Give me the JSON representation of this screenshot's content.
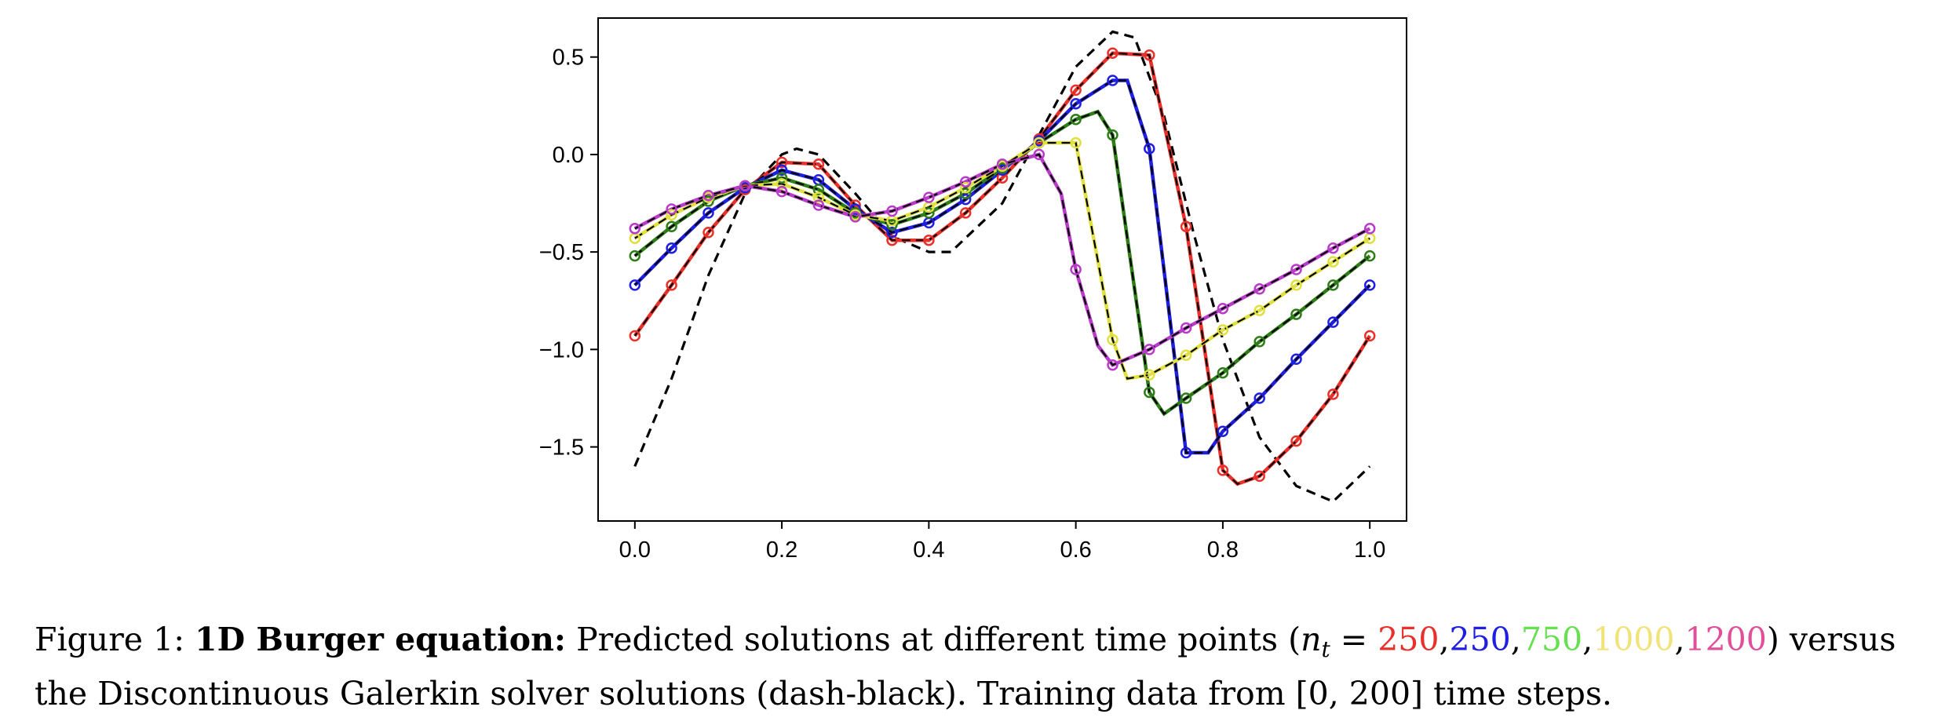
{
  "chart_data": {
    "type": "line",
    "xlim": [
      -0.05,
      1.05
    ],
    "ylim": [
      -1.88,
      0.7
    ],
    "x_ticks": [
      {
        "value": 0.0,
        "label": "0.0"
      },
      {
        "value": 0.2,
        "label": "0.2"
      },
      {
        "value": 0.4,
        "label": "0.4"
      },
      {
        "value": 0.6,
        "label": "0.6"
      },
      {
        "value": 0.8,
        "label": "0.8"
      },
      {
        "value": 1.0,
        "label": "1.0"
      }
    ],
    "y_ticks": [
      {
        "value": 0.5,
        "label": "0.5"
      },
      {
        "value": 0.0,
        "label": "0.0"
      },
      {
        "value": -0.5,
        "label": "−0.5"
      },
      {
        "value": -1.0,
        "label": "−1.0"
      },
      {
        "value": -1.5,
        "label": "−1.5"
      }
    ],
    "grid": false,
    "marker_x": [
      0.0,
      0.05,
      0.1,
      0.15,
      0.2,
      0.25,
      0.3,
      0.35,
      0.4,
      0.45,
      0.5,
      0.55,
      0.6,
      0.65,
      0.7,
      0.75,
      0.8,
      0.85,
      0.9,
      0.95,
      1.0
    ],
    "reference": {
      "color": "#000000",
      "x": [
        0.0,
        0.05,
        0.1,
        0.15,
        0.2,
        0.22,
        0.25,
        0.3,
        0.35,
        0.4,
        0.43,
        0.5,
        0.55,
        0.6,
        0.65,
        0.68,
        0.72,
        0.76,
        0.8,
        0.85,
        0.9,
        0.95,
        1.0
      ],
      "y": [
        -1.6,
        -1.15,
        -0.62,
        -0.2,
        0.0,
        0.03,
        0.0,
        -0.2,
        -0.42,
        -0.5,
        -0.5,
        -0.25,
        0.1,
        0.45,
        0.63,
        0.6,
        0.2,
        -0.4,
        -0.95,
        -1.45,
        -1.7,
        -1.78,
        -1.6
      ]
    },
    "series": [
      {
        "color": "#e8312a",
        "x": [
          0.0,
          0.05,
          0.1,
          0.15,
          0.2,
          0.25,
          0.3,
          0.35,
          0.4,
          0.45,
          0.5,
          0.55,
          0.6,
          0.65,
          0.7,
          0.75,
          0.8,
          0.82,
          0.85,
          0.9,
          0.95,
          1.0
        ],
        "y": [
          -0.93,
          -0.67,
          -0.4,
          -0.18,
          -0.04,
          -0.05,
          -0.26,
          -0.44,
          -0.44,
          -0.3,
          -0.12,
          0.08,
          0.33,
          0.52,
          0.51,
          -0.37,
          -1.62,
          -1.69,
          -1.65,
          -1.47,
          -1.23,
          -0.93
        ]
      },
      {
        "color": "#1f1fe0",
        "x": [
          0.0,
          0.05,
          0.1,
          0.15,
          0.2,
          0.25,
          0.3,
          0.35,
          0.4,
          0.45,
          0.5,
          0.55,
          0.6,
          0.65,
          0.67,
          0.7,
          0.75,
          0.78,
          0.8,
          0.85,
          0.9,
          0.95,
          1.0
        ],
        "y": [
          -0.67,
          -0.48,
          -0.3,
          -0.17,
          -0.08,
          -0.13,
          -0.28,
          -0.4,
          -0.35,
          -0.23,
          -0.08,
          0.07,
          0.26,
          0.38,
          0.38,
          0.03,
          -1.53,
          -1.53,
          -1.42,
          -1.25,
          -1.05,
          -0.86,
          -0.67
        ]
      },
      {
        "color": "#2e7d18",
        "x": [
          0.0,
          0.05,
          0.1,
          0.15,
          0.2,
          0.25,
          0.3,
          0.35,
          0.4,
          0.45,
          0.5,
          0.55,
          0.6,
          0.63,
          0.65,
          0.7,
          0.72,
          0.75,
          0.8,
          0.85,
          0.9,
          0.95,
          1.0
        ],
        "y": [
          -0.52,
          -0.37,
          -0.24,
          -0.16,
          -0.12,
          -0.18,
          -0.3,
          -0.36,
          -0.3,
          -0.2,
          -0.07,
          0.06,
          0.18,
          0.22,
          0.1,
          -1.22,
          -1.33,
          -1.25,
          -1.12,
          -0.96,
          -0.82,
          -0.67,
          -0.52
        ]
      },
      {
        "color": "#e0e040",
        "x": [
          0.0,
          0.05,
          0.1,
          0.15,
          0.2,
          0.25,
          0.3,
          0.35,
          0.4,
          0.45,
          0.5,
          0.55,
          0.6,
          0.65,
          0.67,
          0.7,
          0.75,
          0.8,
          0.85,
          0.9,
          0.95,
          1.0
        ],
        "y": [
          -0.43,
          -0.31,
          -0.22,
          -0.16,
          -0.15,
          -0.22,
          -0.31,
          -0.34,
          -0.27,
          -0.17,
          -0.06,
          0.06,
          0.06,
          -0.95,
          -1.15,
          -1.13,
          -1.03,
          -0.9,
          -0.8,
          -0.67,
          -0.55,
          -0.43
        ]
      },
      {
        "color": "#b83cc8",
        "x": [
          0.0,
          0.05,
          0.1,
          0.15,
          0.2,
          0.25,
          0.3,
          0.35,
          0.4,
          0.45,
          0.5,
          0.55,
          0.58,
          0.6,
          0.63,
          0.65,
          0.7,
          0.75,
          0.8,
          0.85,
          0.9,
          0.95,
          1.0
        ],
        "y": [
          -0.38,
          -0.28,
          -0.21,
          -0.16,
          -0.19,
          -0.26,
          -0.32,
          -0.29,
          -0.22,
          -0.14,
          -0.05,
          0.0,
          -0.2,
          -0.59,
          -0.98,
          -1.08,
          -1.0,
          -0.89,
          -0.79,
          -0.69,
          -0.59,
          -0.48,
          -0.38
        ]
      }
    ]
  },
  "caption": {
    "figure_label": "Figure 1: ",
    "bold_title": "1D Burger equation:",
    "text_before": " Predicted solutions at different time points (",
    "nt_var": "n",
    "nt_sub": "t",
    "equals": " = ",
    "values": [
      {
        "text": "250",
        "color": "#e8312a"
      },
      {
        "text": "250",
        "color": "#1f1fe0"
      },
      {
        "text": "750",
        "color": "#66e050"
      },
      {
        "text": "1000",
        "color": "#f2e27a"
      },
      {
        "text": "1200",
        "color": "#e0509a"
      }
    ],
    "comma": ",",
    "text_after": ") versus",
    "line2": "the Discontinuous Galerkin solver solutions (dash-black). Training data from [0, 200] time steps."
  }
}
